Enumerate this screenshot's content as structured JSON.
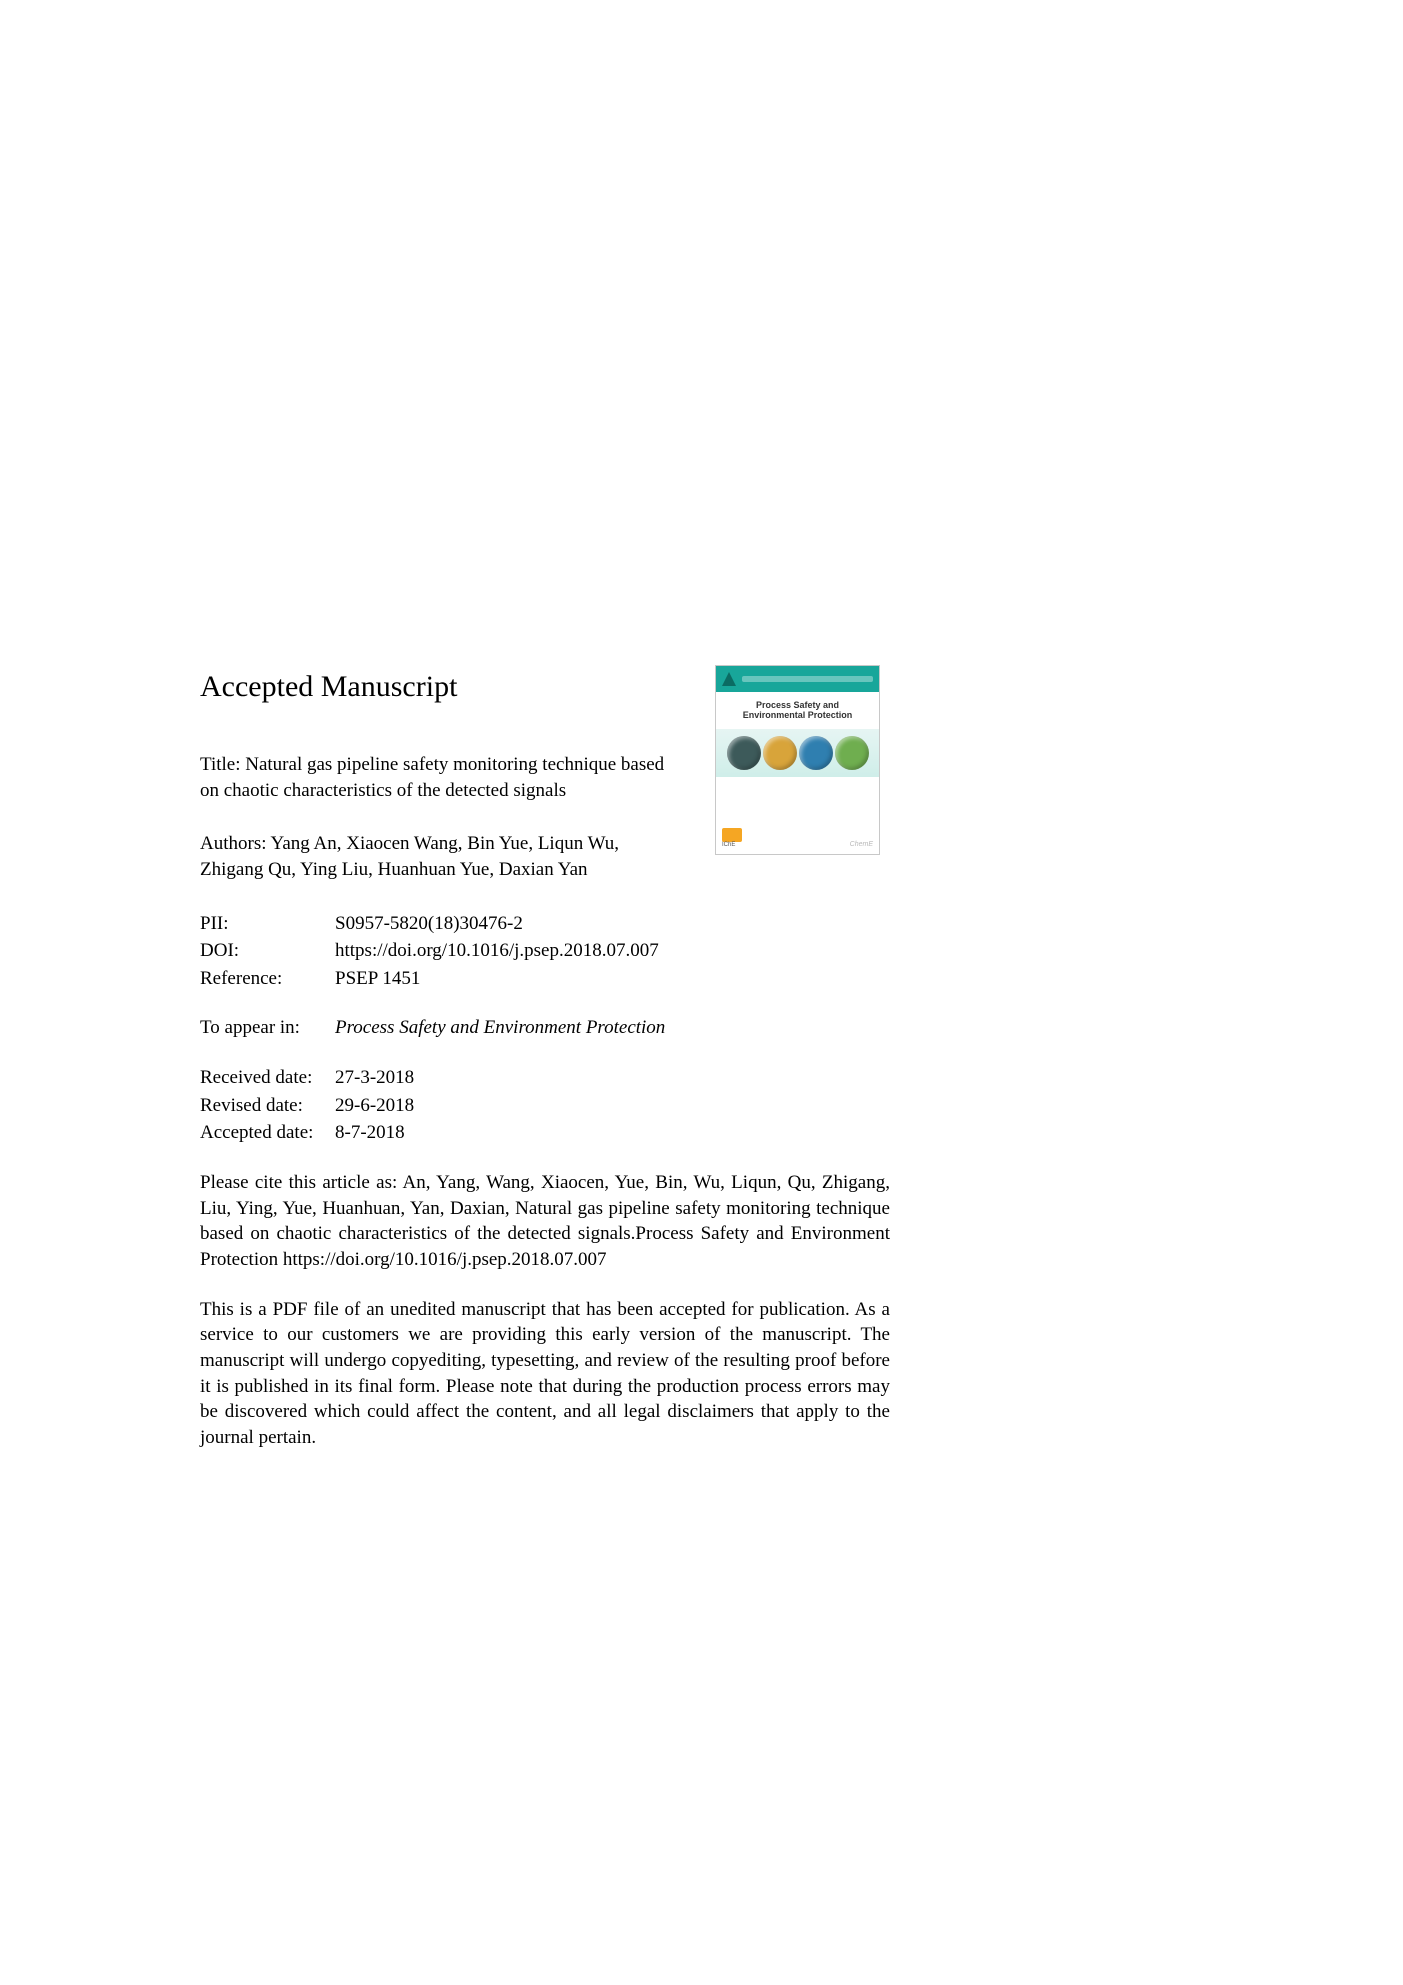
{
  "heading": "Accepted Manuscript",
  "title_label": "Title: ",
  "title": "Natural gas pipeline safety monitoring technique based on chaotic characteristics of the detected signals",
  "authors_label": "Authors: ",
  "authors": "Yang An, Xiaocen Wang, Bin Yue, Liqun Wu, Zhigang Qu, Ying Liu, Huanhuan Yue, Daxian Yan",
  "ids": {
    "pii_label": "PII:",
    "pii": "S0957-5820(18)30476-2",
    "doi_label": "DOI:",
    "doi": "https://doi.org/10.1016/j.psep.2018.07.007",
    "ref_label": "Reference:",
    "ref": "PSEP 1451"
  },
  "appear": {
    "label": "To appear in:",
    "journal": "Process Safety and Environment Protection"
  },
  "dates": {
    "received_label": "Received date:",
    "received": "27-3-2018",
    "revised_label": "Revised date:",
    "revised": "29-6-2018",
    "accepted_label": "Accepted date:",
    "accepted": "8-7-2018"
  },
  "citation": "Please cite this article as: An, Yang, Wang, Xiaocen, Yue, Bin, Wu, Liqun, Qu, Zhigang, Liu, Ying, Yue, Huanhuan, Yan, Daxian, Natural gas pipeline safety monitoring technique based on chaotic characteristics of the detected signals.Process Safety and Environment Protection https://doi.org/10.1016/j.psep.2018.07.007",
  "disclaimer": "This is a PDF file of an unedited manuscript that has been accepted for publication. As a service to our customers we are providing this early version of the manuscript. The manuscript will undergo copyediting, typesetting, and review of the resulting proof before it is published in its final form. Please note that during the production process errors may be discovered which could affect the content, and all legal disclaimers that apply to the journal pertain.",
  "cover": {
    "journal_title": "Process Safety and Environmental Protection",
    "subtitle": "",
    "circle_colors": [
      "#3d5a5a",
      "#d8a43a",
      "#2f7fb0",
      "#6fae4f"
    ],
    "header_color": "#18a69a",
    "band_gradient_top": "#e6f5f3",
    "band_gradient_bottom": "#cfeee9",
    "badge_label": "IChE",
    "publisher": "ChemE"
  }
}
